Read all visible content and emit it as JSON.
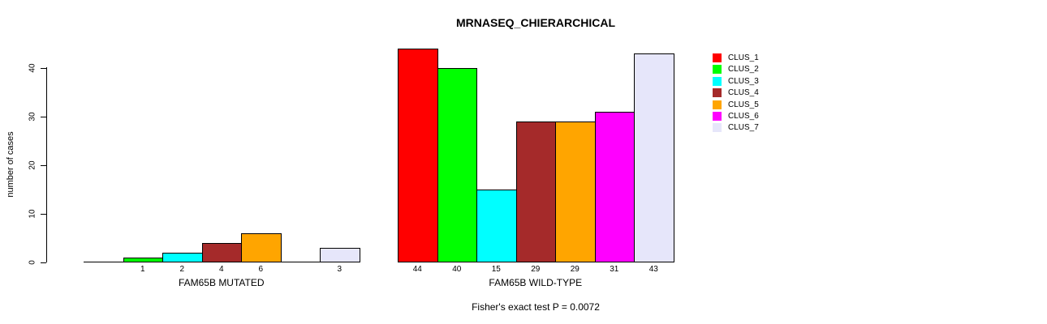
{
  "chart_data": {
    "type": "bar",
    "title": "MRNASEQ_CHIERARCHICAL",
    "ylabel": "number of cases",
    "ylim": [
      0,
      44
    ],
    "yticks": [
      0,
      10,
      20,
      30,
      40
    ],
    "grid": false,
    "legend_position": "right",
    "categories": [
      "FAM65B MUTATED",
      "FAM65B WILD-TYPE"
    ],
    "series": [
      {
        "name": "CLUS_1",
        "color": "#FF0000",
        "values": [
          0,
          44
        ]
      },
      {
        "name": "CLUS_2",
        "color": "#00FF00",
        "values": [
          1,
          40
        ]
      },
      {
        "name": "CLUS_3",
        "color": "#00FFFF",
        "values": [
          2,
          15
        ]
      },
      {
        "name": "CLUS_4",
        "color": "#A52A2A",
        "values": [
          4,
          29
        ]
      },
      {
        "name": "CLUS_5",
        "color": "#FFA500",
        "values": [
          6,
          29
        ]
      },
      {
        "name": "CLUS_6",
        "color": "#FF00FF",
        "values": [
          0,
          31
        ]
      },
      {
        "name": "CLUS_7",
        "color": "#E6E6FA",
        "values": [
          3,
          43
        ]
      }
    ],
    "bar_value_labels": {
      "FAM65B MUTATED": [
        "",
        "1",
        "2",
        "4",
        "6",
        "",
        "3"
      ],
      "FAM65B WILD-TYPE": [
        "44",
        "40",
        "15",
        "29",
        "29",
        "31",
        "43"
      ]
    },
    "footer": "Fisher's exact test P = 0.0072",
    "colors": {
      "axis": "#000000",
      "bar_border": "#000000",
      "background": "#FFFFFF"
    }
  }
}
